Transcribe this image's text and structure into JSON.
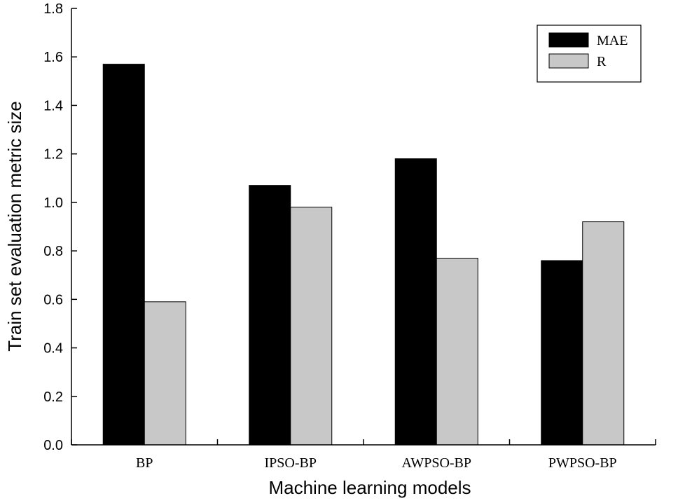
{
  "chart_data": {
    "type": "bar",
    "title": "",
    "xlabel": "Machine learning models",
    "ylabel": "Train set evaluation metric size",
    "categories": [
      "BP",
      "IPSO-BP",
      "AWPSO-BP",
      "PWPSO-BP"
    ],
    "series": [
      {
        "name": "MAE",
        "color": "#000000",
        "values": [
          1.57,
          1.07,
          1.18,
          0.76
        ]
      },
      {
        "name": "R",
        "color": "#c8c8c8",
        "values": [
          0.59,
          0.98,
          0.77,
          0.92
        ]
      }
    ],
    "ylim": [
      0,
      1.8
    ],
    "yticks": [
      "0.0",
      "0.2",
      "0.4",
      "0.6",
      "0.8",
      "1.0",
      "1.2",
      "1.4",
      "1.6",
      "1.8"
    ],
    "grid": false,
    "legend": {
      "position": "top-right"
    }
  }
}
